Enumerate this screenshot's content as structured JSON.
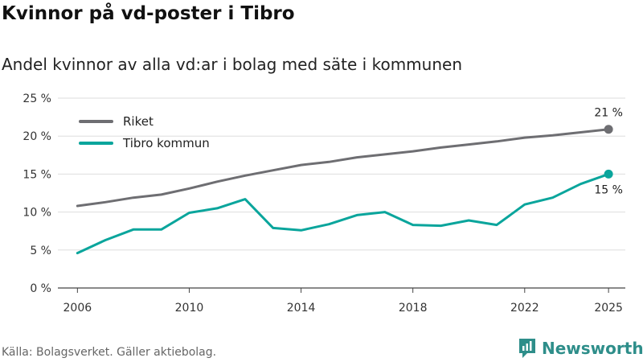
{
  "title": "Kvinnor på vd-poster i Tibro",
  "subtitle": "Andel kvinnor av alla vd:ar i bolag med säte i kommunen",
  "source": "Källa: Bolagsverket. Gäller aktiebolag.",
  "brand": "Newsworthy",
  "chart_data": {
    "type": "line",
    "title": "Kvinnor på vd-poster i Tibro",
    "subtitle": "Andel kvinnor av alla vd:ar i bolag med säte i kommunen",
    "x": [
      2006,
      2007,
      2008,
      2009,
      2010,
      2011,
      2012,
      2013,
      2014,
      2015,
      2016,
      2017,
      2018,
      2019,
      2020,
      2021,
      2022,
      2023,
      2024,
      2025
    ],
    "series": [
      {
        "name": "Riket",
        "color": "#6e6e72",
        "values": [
          10.8,
          11.3,
          11.9,
          12.3,
          13.1,
          14.0,
          14.8,
          15.5,
          16.2,
          16.6,
          17.2,
          17.6,
          18.0,
          18.5,
          18.9,
          19.3,
          19.8,
          20.1,
          20.5,
          20.9
        ]
      },
      {
        "name": "Tibro kommun",
        "color": "#0aa59c",
        "values": [
          4.6,
          6.3,
          7.7,
          7.7,
          9.9,
          10.5,
          11.7,
          7.9,
          7.6,
          8.4,
          9.6,
          10.0,
          8.3,
          8.2,
          8.9,
          8.3,
          11.0,
          11.9,
          13.7,
          15.0
        ]
      }
    ],
    "end_labels": [
      "21 %",
      "15 %"
    ],
    "ylim": [
      0,
      25
    ],
    "yticks": [
      0,
      5,
      10,
      15,
      20,
      25
    ],
    "ytick_labels": [
      "0 %",
      "5 %",
      "10 %",
      "15 %",
      "20 %",
      "25 %"
    ],
    "xlim": [
      2005.3,
      2025.6
    ],
    "xticks": [
      2006,
      2010,
      2014,
      2018,
      2022,
      2025
    ],
    "xtick_labels": [
      "2006",
      "2010",
      "2014",
      "2018",
      "2022",
      "2025"
    ],
    "xlabel": "",
    "ylabel": "",
    "legend_position": "top-left",
    "grid": true
  }
}
